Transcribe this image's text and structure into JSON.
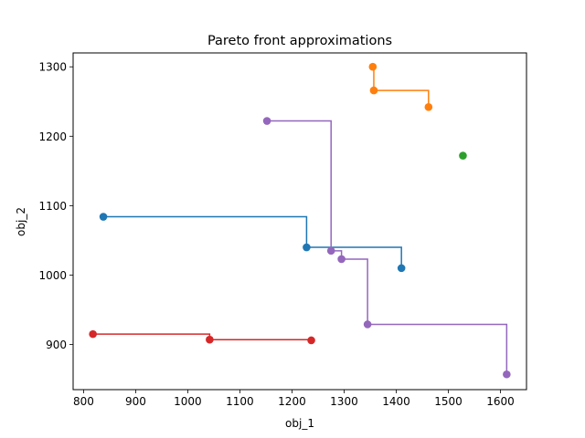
{
  "chart_data": {
    "type": "line",
    "title": "Pareto front approximations",
    "xlabel": "obj_1",
    "ylabel": "obj_2",
    "xlim": [
      780,
      1650
    ],
    "ylim": [
      835,
      1320
    ],
    "xticks": [
      800,
      900,
      1000,
      1100,
      1200,
      1300,
      1400,
      1500,
      1600
    ],
    "yticks": [
      900,
      1000,
      1100,
      1200,
      1300
    ],
    "grid": false,
    "legend": "none",
    "step_style": "post",
    "series": [
      {
        "color": "#1f77b4",
        "points": [
          [
            838,
            1084
          ],
          [
            1228,
            1040
          ],
          [
            1410,
            1010
          ]
        ]
      },
      {
        "color": "#ff7f0e",
        "points": [
          [
            1355,
            1300
          ],
          [
            1357,
            1266
          ],
          [
            1462,
            1242
          ]
        ]
      },
      {
        "color": "#2ca02c",
        "points": [
          [
            1528,
            1172
          ]
        ]
      },
      {
        "color": "#d62728",
        "points": [
          [
            818,
            915
          ],
          [
            1042,
            907
          ],
          [
            1237,
            906
          ]
        ]
      },
      {
        "color": "#9467bd",
        "points": [
          [
            1152,
            1222
          ],
          [
            1275,
            1035
          ],
          [
            1295,
            1023
          ],
          [
            1345,
            929
          ],
          [
            1612,
            857
          ]
        ]
      }
    ]
  }
}
